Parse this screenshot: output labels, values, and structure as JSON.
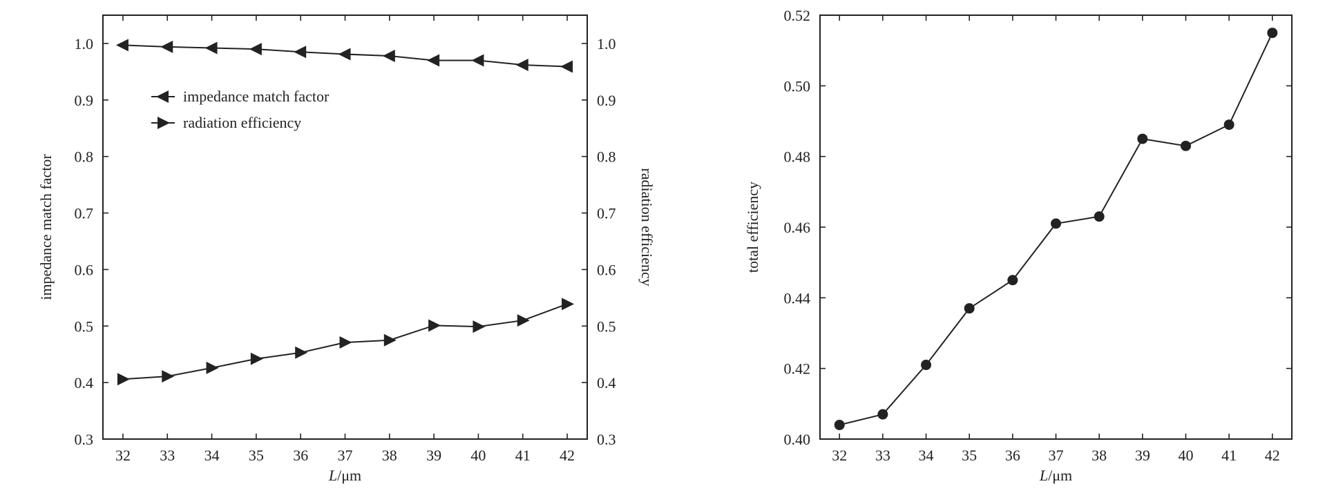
{
  "chart_data": [
    {
      "type": "line",
      "x": [
        32,
        33,
        34,
        35,
        36,
        37,
        38,
        39,
        40,
        41,
        42
      ],
      "xlabel_italic": "L",
      "xlabel_rest": "/μm",
      "ylabel": "impedance match factor",
      "ylabel_right": "radiation efficiency",
      "xlim": [
        31.55,
        42.45
      ],
      "ylim": [
        0.3,
        1.05
      ],
      "yticks": [
        0.3,
        0.4,
        0.5,
        0.6,
        0.7,
        0.8,
        0.9,
        1.0
      ],
      "yticks_right": [
        0.3,
        0.4,
        0.5,
        0.6,
        0.7,
        0.8,
        0.9,
        1.0
      ],
      "grid": false,
      "legend_position": "upper-left",
      "series": [
        {
          "name": "impedance match factor",
          "marker": "left-triangle",
          "axis": "left",
          "values": [
            0.997,
            0.994,
            0.992,
            0.99,
            0.985,
            0.981,
            0.978,
            0.97,
            0.97,
            0.962,
            0.959
          ]
        },
        {
          "name": "radiation efficiency",
          "marker": "right-triangle",
          "axis": "right",
          "values": [
            0.406,
            0.411,
            0.426,
            0.442,
            0.453,
            0.471,
            0.475,
            0.501,
            0.499,
            0.51,
            0.539
          ]
        }
      ]
    },
    {
      "type": "line",
      "x": [
        32,
        33,
        34,
        35,
        36,
        37,
        38,
        39,
        40,
        41,
        42
      ],
      "xlabel_italic": "L",
      "xlabel_rest": "/μm",
      "ylabel": "total efficiency",
      "xlim": [
        31.55,
        42.45
      ],
      "ylim": [
        0.4,
        0.52
      ],
      "yticks": [
        0.4,
        0.42,
        0.44,
        0.46,
        0.48,
        0.5,
        0.52
      ],
      "grid": false,
      "series": [
        {
          "marker": "circle",
          "axis": "left",
          "values": [
            0.404,
            0.407,
            0.421,
            0.437,
            0.445,
            0.461,
            0.463,
            0.485,
            0.483,
            0.489,
            0.515
          ]
        }
      ]
    }
  ]
}
